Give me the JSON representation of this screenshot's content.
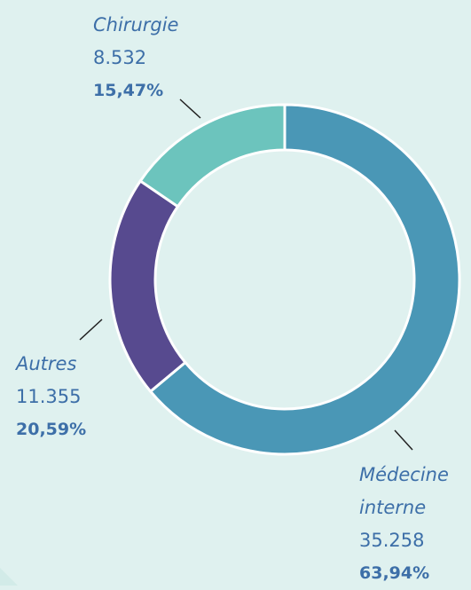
{
  "chart_data": {
    "type": "donut",
    "categories": [
      "Médecine interne",
      "Autres",
      "Chirurgie"
    ],
    "values": [
      35258,
      11355,
      8532
    ],
    "value_labels": [
      "35.258",
      "11.355",
      "8.532"
    ],
    "percentages": [
      63.94,
      20.59,
      15.47
    ],
    "percentage_labels": [
      "63,94%",
      "20,59%",
      "15,47%"
    ],
    "colors": [
      "#4a97b6",
      "#574a8f",
      "#6cc4bd"
    ]
  }
}
